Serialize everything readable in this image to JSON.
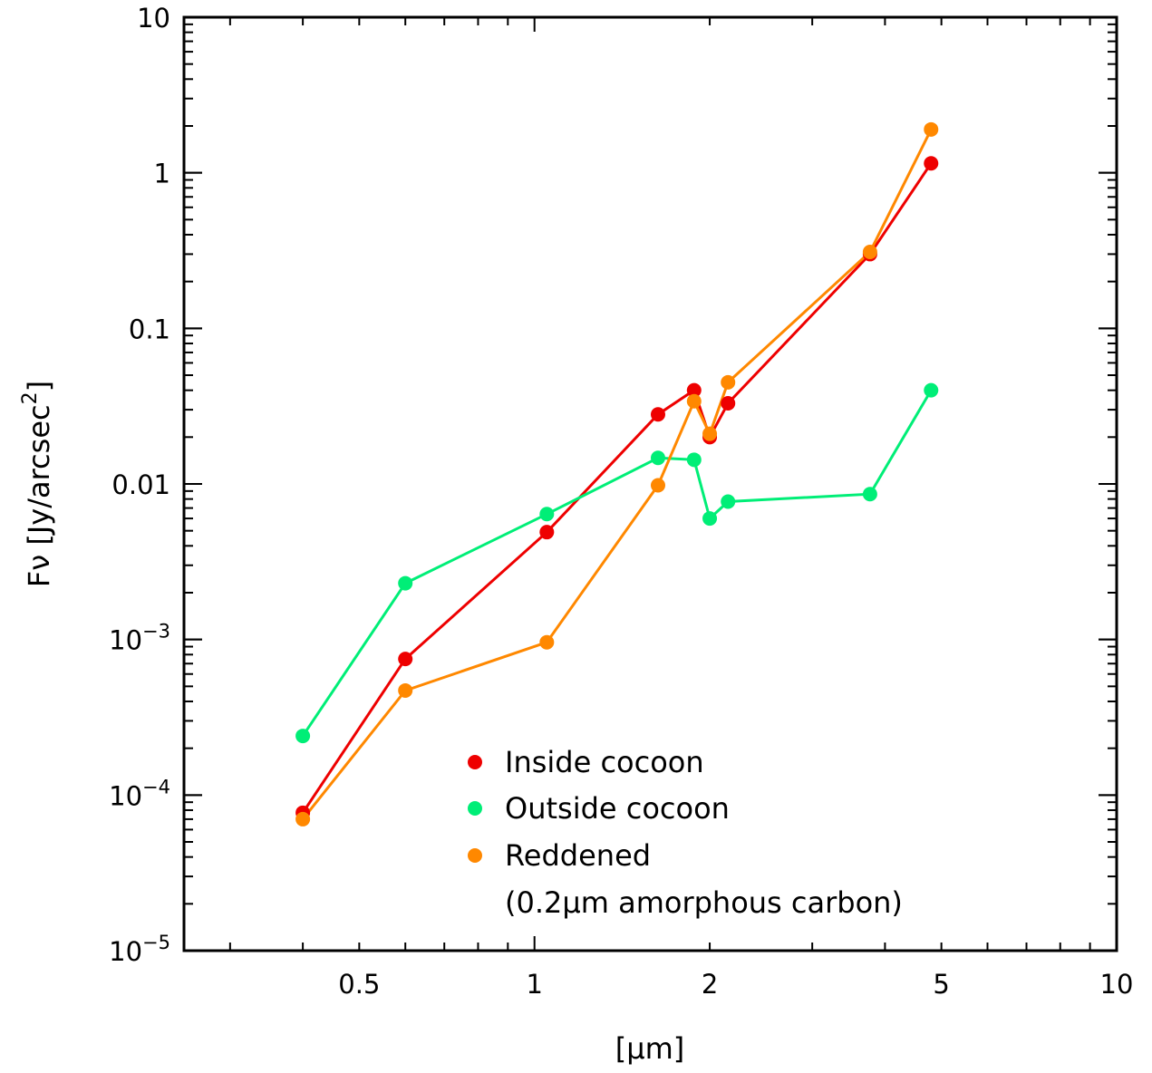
{
  "chart_data": {
    "type": "scatter",
    "xscale": "log",
    "yscale": "log",
    "xlim": [
      0.25,
      10
    ],
    "ylim": [
      1e-05,
      10
    ],
    "xlabel": "[μm]",
    "ylabel_main": "Fν [Jy/arcsec",
    "ylabel_sup": "2",
    "ylabel_end": "]",
    "grid": false,
    "legend_position": "bottom-center",
    "x_ticks_major": [
      {
        "value": 0.5,
        "label": "0.5"
      },
      {
        "value": 1,
        "label": "1"
      },
      {
        "value": 2,
        "label": "2"
      },
      {
        "value": 5,
        "label": "5"
      },
      {
        "value": 10,
        "label": "10"
      }
    ],
    "y_ticks_major": [
      {
        "value": 10,
        "base": "10",
        "exp": ""
      },
      {
        "value": 1,
        "base": "1",
        "exp": ""
      },
      {
        "value": 0.1,
        "base": "0.1",
        "exp": ""
      },
      {
        "value": 0.01,
        "base": "0.01",
        "exp": ""
      },
      {
        "value": 0.001,
        "base": "10",
        "exp": "−3"
      },
      {
        "value": 0.0001,
        "base": "10",
        "exp": "−4"
      },
      {
        "value": 1e-05,
        "base": "10",
        "exp": "−5"
      }
    ],
    "series": [
      {
        "name": "Inside cocoon",
        "color": "#ee0000",
        "x": [
          0.4,
          0.6,
          1.05,
          1.63,
          1.88,
          2.0,
          2.15,
          3.77,
          4.8
        ],
        "y": [
          7.7e-05,
          0.00075,
          0.0049,
          0.028,
          0.04,
          0.02,
          0.033,
          0.3,
          1.15
        ]
      },
      {
        "name": "Outside cocoon",
        "color": "#00ee77",
        "x": [
          0.4,
          0.6,
          1.05,
          1.63,
          1.88,
          2.0,
          2.15,
          3.77,
          4.8
        ],
        "y": [
          0.00024,
          0.0023,
          0.0064,
          0.0147,
          0.0143,
          0.006,
          0.0077,
          0.0086,
          0.04
        ]
      },
      {
        "name": "Reddened",
        "name_line2": "(0.2μm amorphous carbon)",
        "color": "#ff8800",
        "x": [
          0.4,
          0.6,
          1.05,
          1.63,
          1.88,
          2.0,
          2.15,
          3.77,
          4.8
        ],
        "y": [
          7e-05,
          0.00047,
          0.00096,
          0.0098,
          0.034,
          0.021,
          0.045,
          0.31,
          1.9
        ]
      }
    ]
  }
}
